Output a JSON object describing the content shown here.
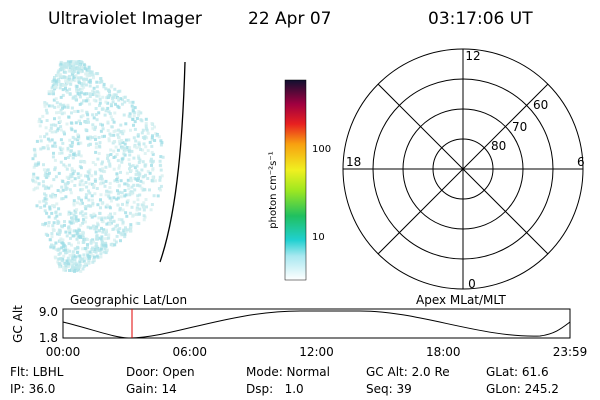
{
  "header": {
    "title": "Ultraviolet Imager",
    "date": "22 Apr 07",
    "time": "03:17:06 UT"
  },
  "colorbar": {
    "label": "photon cm⁻²s⁻¹",
    "ticks": [
      "100",
      "10"
    ]
  },
  "polar": {
    "mlt_labels": [
      "12",
      "18",
      "6",
      "0"
    ],
    "lat_labels": [
      "80",
      "70",
      "60"
    ]
  },
  "strip": {
    "y_label": "GC Alt",
    "y_ticks": [
      "9.0",
      "1.8"
    ],
    "left_title": "Geographic Lat/Lon",
    "right_title": "Apex MLat/MLT",
    "x_ticks": [
      "00:00",
      "06:00",
      "12:00",
      "18:00",
      "23:59"
    ]
  },
  "footer": {
    "rows": [
      [
        "Flt: LBHL",
        "Door: Open",
        "Mode: Normal",
        "GC Alt: 2.0 Re",
        "GLat: 61.6"
      ],
      [
        "IP: 36.0",
        "Gain: 14",
        "Dsp:   1.0",
        "Seq: 39",
        "GLon: 245.2"
      ]
    ]
  }
}
